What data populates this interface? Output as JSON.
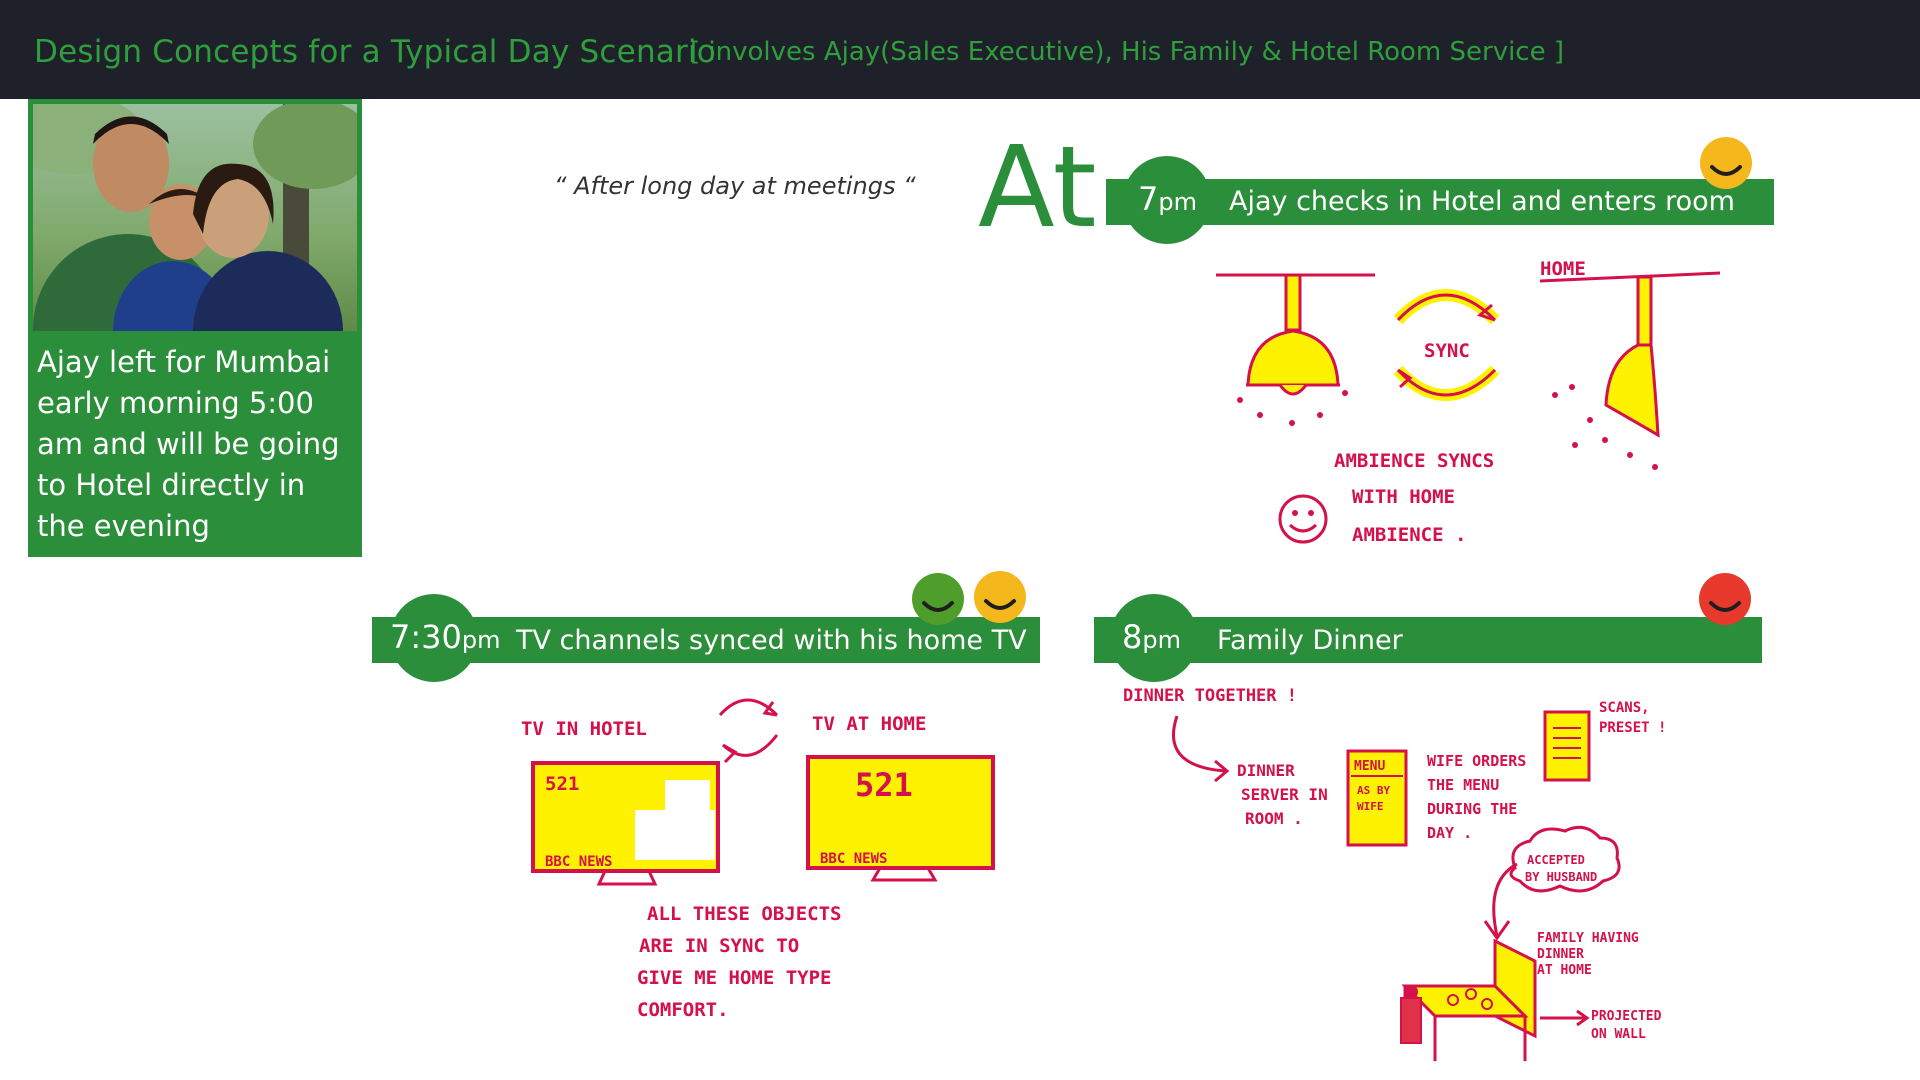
{
  "header": {
    "title": "Design Concepts for a Typical Day Scenario",
    "subtitle": "[ involves Ajay(Sales Executive), His Family & Hotel Room Service ]"
  },
  "intro": {
    "text": "Ajay left for Mumbai early morning 5:00 am and will be going to Hotel directly in the evening"
  },
  "quote": "“ After long day at meetings  “",
  "at_label": "At",
  "scenes": [
    {
      "time_num": "7",
      "time_suffix": "pm",
      "caption": "Ajay checks in Hotel and enters room",
      "mood_colors": [
        "#f5b81c"
      ],
      "sketch": {
        "labels": {
          "home": "HOME",
          "sync": "SYNC",
          "line1": "AMBIENCE SYNCS",
          "line2": "WITH  HOME",
          "line3": "AMBIENCE ."
        }
      }
    },
    {
      "time_num": "7:30",
      "time_suffix": "pm",
      "caption": "TV channels synced with his home TV",
      "mood_colors": [
        "#4f9e2c",
        "#f5b81c"
      ],
      "sketch": {
        "labels": {
          "tv_hotel": "TV IN HOTEL",
          "tv_home": "TV AT HOME",
          "channel": "521",
          "news": "BBC NEWS",
          "note1": "ALL THESE OBJECTS",
          "note2": "ARE  IN SYNC  TO",
          "note3": "GIVE  ME  HOME  TYPE",
          "note4": "COMFORT."
        }
      }
    },
    {
      "time_num": "8",
      "time_suffix": "pm",
      "caption": "Family Dinner",
      "mood_colors": [
        "#e83a2c"
      ],
      "sketch": {
        "labels": {
          "dinner_together": "DINNER TOGETHER !",
          "server1": "DINNER",
          "server2": "SERVER IN",
          "server3": "ROOM .",
          "menu": "MENU",
          "menu_sub1": "AS BY",
          "menu_sub2": "WIFE",
          "wife1": "WIFE ORDERS",
          "wife2": "THE MENU",
          "wife3": "DURING THE",
          "wife4": "DAY .",
          "scans1": "SCANS,",
          "scans2": "PRESET !",
          "accepted1": "ACCEPTED",
          "accepted2": "BY HUSBAND",
          "family1": "FAMILY HAVING",
          "family2": "DINNER",
          "family3": "AT HOME",
          "projected1": "PROJECTED",
          "projected2": "ON WALL"
        }
      }
    }
  ],
  "colors": {
    "title_green": "#2f9e3c",
    "banner_green": "#2b8e3a",
    "header_bg": "#1e2129",
    "sketch_red": "#d4114a",
    "sketch_yellow": "#fff200"
  },
  "images": {
    "family_photo": "family-photo"
  }
}
